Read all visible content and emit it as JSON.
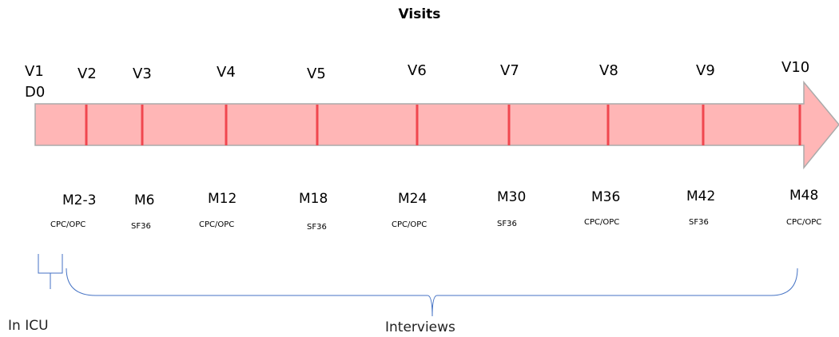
{
  "title": "Visits",
  "colors": {
    "arrow_fill": "#ffb6b6",
    "arrow_stroke": "#aaaaaa",
    "tick": "#f0474f",
    "bracket": "#4472c4"
  },
  "visits": [
    {
      "label": "V1",
      "sub": "D0"
    },
    {
      "label": "V2",
      "month": "M2-3",
      "assessment": "CPC/OPC"
    },
    {
      "label": "V3",
      "month": "M6",
      "assessment": "SF36"
    },
    {
      "label": "V4",
      "month": "M12",
      "assessment": "CPC/OPC"
    },
    {
      "label": "V5",
      "month": "M18",
      "assessment": "SF36"
    },
    {
      "label": "V6",
      "month": "M24",
      "assessment": "CPC/OPC"
    },
    {
      "label": "V7",
      "month": "M30",
      "assessment": "SF36"
    },
    {
      "label": "V8",
      "month": "M36",
      "assessment": "CPC/OPC"
    },
    {
      "label": "V9",
      "month": "M42",
      "assessment": "SF36"
    },
    {
      "label": "V10",
      "month": "M48",
      "assessment": "CPC/OPC"
    }
  ],
  "brackets": {
    "icu": "In ICU",
    "interviews": "Interviews"
  }
}
